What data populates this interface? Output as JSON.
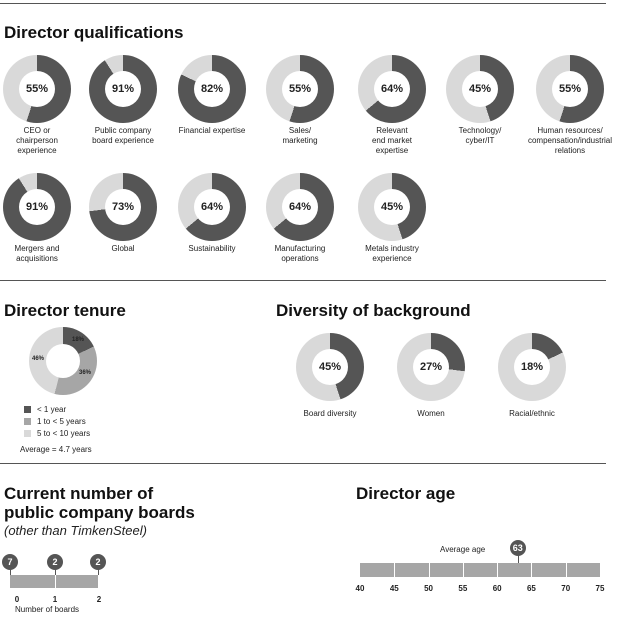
{
  "colors": {
    "dark": "#555555",
    "mid": "#a6a6a6",
    "light": "#d9d9d9"
  },
  "qualifications": {
    "title": "Director qualifications",
    "items": [
      {
        "pct": "55%",
        "value": 55,
        "label": "CEO or\nchairperson\nexperience"
      },
      {
        "pct": "91%",
        "value": 91,
        "label": "Public company\nboard experience"
      },
      {
        "pct": "82%",
        "value": 82,
        "label": "Financial expertise"
      },
      {
        "pct": "55%",
        "value": 55,
        "label": "Sales/\nmarketing"
      },
      {
        "pct": "64%",
        "value": 64,
        "label": "Relevant\nend market\nexpertise"
      },
      {
        "pct": "45%",
        "value": 45,
        "label": "Technology/\ncyber/IT"
      },
      {
        "pct": "55%",
        "value": 55,
        "label": "Human resources/\ncompensation/industrial\nrelations"
      },
      {
        "pct": "91%",
        "value": 91,
        "label": "Mergers and\nacquisitions"
      },
      {
        "pct": "73%",
        "value": 73,
        "label": "Global"
      },
      {
        "pct": "64%",
        "value": 64,
        "label": "Sustainability"
      },
      {
        "pct": "64%",
        "value": 64,
        "label": "Manufacturing\noperations"
      },
      {
        "pct": "45%",
        "value": 45,
        "label": "Metals industry\nexperience"
      }
    ]
  },
  "tenure": {
    "title": "Director tenure",
    "slices": [
      {
        "name": "< 1 year",
        "value": 18,
        "text": "18%"
      },
      {
        "name": "1 to < 5 years",
        "value": 36,
        "text": "36%"
      },
      {
        "name": "5 to < 10 years",
        "value": 46,
        "text": "46%"
      }
    ],
    "average": "Average = 4.7 years"
  },
  "diversity": {
    "title": "Diversity of background",
    "items": [
      {
        "pct": "45%",
        "value": 45,
        "label": "Board diversity"
      },
      {
        "pct": "27%",
        "value": 27,
        "label": "Women"
      },
      {
        "pct": "18%",
        "value": 18,
        "label": "Racial/ethnic"
      }
    ]
  },
  "boards": {
    "title_line1": "Current number of",
    "title_line2": "public company boards",
    "subtitle": "(other than TimkenSteel)",
    "axis_label": "Number of boards",
    "points": [
      {
        "boards": 0,
        "count": "7"
      },
      {
        "boards": 1,
        "count": "2"
      },
      {
        "boards": 2,
        "count": "2"
      }
    ],
    "ticks": [
      "0",
      "1",
      "2"
    ]
  },
  "age": {
    "title": "Director age",
    "average_label": "Average age",
    "average": 63,
    "average_text": "63",
    "ticks": [
      "40",
      "45",
      "50",
      "55",
      "60",
      "65",
      "70",
      "75"
    ],
    "range": [
      40,
      75
    ]
  },
  "chart_data": [
    {
      "type": "pie",
      "title": "Director qualifications",
      "categories": [
        "CEO or chairperson experience",
        "Public company board experience",
        "Financial expertise",
        "Sales/marketing",
        "Relevant end market expertise",
        "Technology/cyber/IT",
        "Human resources/compensation/industrial relations",
        "Mergers and acquisitions",
        "Global",
        "Sustainability",
        "Manufacturing operations",
        "Metals industry experience"
      ],
      "values": [
        55,
        91,
        82,
        55,
        64,
        45,
        55,
        91,
        73,
        64,
        64,
        45
      ]
    },
    {
      "type": "pie",
      "title": "Director tenure",
      "categories": [
        "< 1 year",
        "1 to < 5 years",
        "5 to < 10 years"
      ],
      "values": [
        18,
        36,
        46
      ]
    },
    {
      "type": "pie",
      "title": "Diversity of background",
      "categories": [
        "Board diversity",
        "Women",
        "Racial/ethnic"
      ],
      "values": [
        45,
        27,
        18
      ]
    },
    {
      "type": "scatter",
      "title": "Current number of public company boards",
      "x": [
        0,
        1,
        2
      ],
      "y": [
        7,
        2,
        2
      ],
      "xlabel": "Number of boards"
    },
    {
      "type": "bar",
      "title": "Director age",
      "xlim": [
        40,
        75
      ],
      "average": 63
    }
  ]
}
